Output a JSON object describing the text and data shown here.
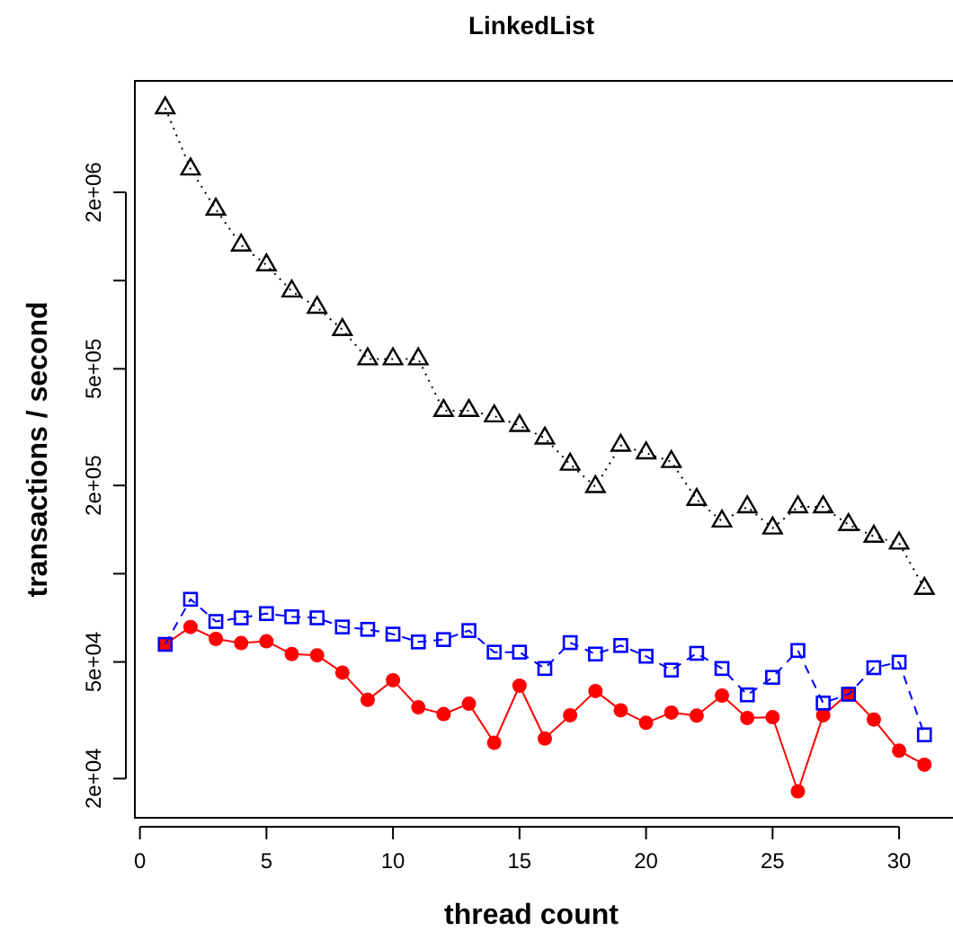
{
  "chart_data": {
    "type": "line",
    "title": "LinkedList",
    "xlabel": "thread count",
    "ylabel": "transactions / second",
    "x": [
      1,
      2,
      3,
      4,
      5,
      6,
      7,
      8,
      9,
      10,
      11,
      12,
      13,
      14,
      15,
      16,
      17,
      18,
      19,
      20,
      21,
      22,
      23,
      24,
      25,
      26,
      27,
      28,
      29,
      30,
      31
    ],
    "series": [
      {
        "color": "#ff0000",
        "marker": "circle",
        "line_style": "solid",
        "values": [
          57400,
          65800,
          59900,
          58000,
          58800,
          53200,
          52700,
          46000,
          37100,
          43300,
          35000,
          33200,
          36000,
          26500,
          41500,
          27400,
          32900,
          39800,
          34200,
          31000,
          33600,
          32800,
          38400,
          32200,
          32400,
          18100,
          32900,
          39000,
          31800,
          24900,
          22300
        ]
      },
      {
        "color": "#0000ff",
        "marker": "square",
        "line_style": "dashed",
        "values": [
          57400,
          81800,
          68700,
          70700,
          73100,
          71300,
          70700,
          65800,
          64600,
          62200,
          58500,
          59600,
          64000,
          54000,
          54000,
          47500,
          58200,
          53200,
          56900,
          52300,
          46900,
          53500,
          47500,
          38600,
          44300,
          54700,
          36200,
          38800,
          47800,
          49900,
          28200
        ]
      },
      {
        "color": "#000000",
        "marker": "triangle",
        "line_style": "dotted",
        "values": [
          3880000,
          2400000,
          1750000,
          1320000,
          1130000,
          920000,
          810000,
          680000,
          540000,
          540000,
          540000,
          360000,
          360000,
          345000,
          320000,
          290000,
          236000,
          198000,
          274000,
          258000,
          241000,
          179000,
          151000,
          169000,
          143000,
          169000,
          169000,
          147000,
          134000,
          127000,
          89000
        ]
      }
    ],
    "log": "y",
    "grid": false,
    "xlim": [
      -0.2,
      32.2
    ],
    "xticks": [
      0,
      5,
      10,
      15,
      20,
      25,
      30
    ],
    "ylim": [
      14700,
      4800000
    ],
    "yticks": [
      {
        "value": 20000,
        "label": "2e+04"
      },
      {
        "value": 50000,
        "label": "5e+04"
      },
      {
        "value": 100000,
        "label": null
      },
      {
        "value": 200000,
        "label": "2e+05"
      },
      {
        "value": 500000,
        "label": "5e+05"
      },
      {
        "value": 1000000,
        "label": null
      },
      {
        "value": 2000000,
        "label": "2e+06"
      }
    ]
  }
}
